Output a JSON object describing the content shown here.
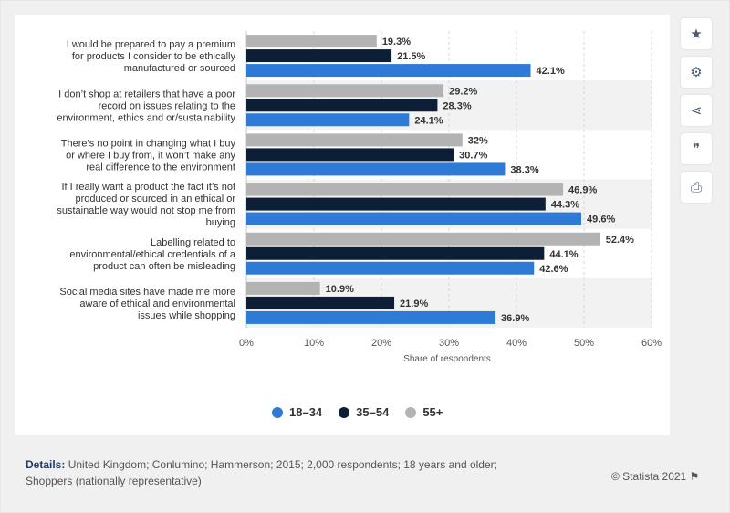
{
  "chart_data": {
    "type": "bar",
    "orientation": "horizontal",
    "categories": [
      [
        "I would be prepared to pay a premium",
        "for products I consider to be ethically",
        "manufactured or sourced"
      ],
      [
        "I don’t shop at retailers that have a poor",
        "record on issues relating to the",
        "environment, ethics and or/sustainability"
      ],
      [
        "There’s no point in changing what I buy",
        "or where I buy from, it won’t make any",
        "real difference to the environment"
      ],
      [
        "If I really want a product the fact it’s not",
        "produced or sourced in an ethical or",
        "sustainable way would not stop me from",
        "buying"
      ],
      [
        "Labelling related to",
        "environmental/ethical credentials of a",
        "product can often be misleading"
      ],
      [
        "Social media sites have made me more",
        "aware of ethical and environmental",
        "issues while shopping"
      ]
    ],
    "series": [
      {
        "name": "55+",
        "color": "#b3b3b3",
        "values": [
          19.3,
          29.2,
          32,
          46.9,
          52.4,
          10.9
        ],
        "labels": [
          "19.3%",
          "29.2%",
          "32%",
          "46.9%",
          "52.4%",
          "10.9%"
        ]
      },
      {
        "name": "35-54",
        "color": "#0d1f36",
        "values": [
          21.5,
          28.3,
          30.7,
          44.3,
          44.1,
          21.9
        ],
        "labels": [
          "21.5%",
          "28.3%",
          "30.7%",
          "44.3%",
          "44.1%",
          "21.9%"
        ]
      },
      {
        "name": "18-34",
        "color": "#2e7ad7",
        "values": [
          42.1,
          24.1,
          38.3,
          49.6,
          42.6,
          36.9
        ],
        "labels": [
          "42.1%",
          "24.1%",
          "38.3%",
          "49.6%",
          "42.6%",
          "36.9%"
        ]
      }
    ],
    "xlim": [
      0,
      60
    ],
    "x_ticks": [
      "0%",
      "10%",
      "20%",
      "30%",
      "40%",
      "50%",
      "60%"
    ],
    "xlabel": "Share of respondents",
    "grid": true,
    "legend_position": "bottom"
  },
  "legend": [
    {
      "label": "18–34",
      "color": "#2e7ad7"
    },
    {
      "label": "35–54",
      "color": "#0d1f36"
    },
    {
      "label": "55+",
      "color": "#b3b3b3"
    }
  ],
  "toolbar": {
    "star": "★",
    "gear": "⚙",
    "share": "⋖",
    "quote": "❞",
    "print": "⎙"
  },
  "footer": {
    "details_label": "Details:",
    "details_text": "United Kingdom; Conlumino; Hammerson; 2015; 2,000 respondents; 18 years and older; Shoppers (nationally representative)",
    "copyright": "© Statista 2021 ⚑"
  }
}
